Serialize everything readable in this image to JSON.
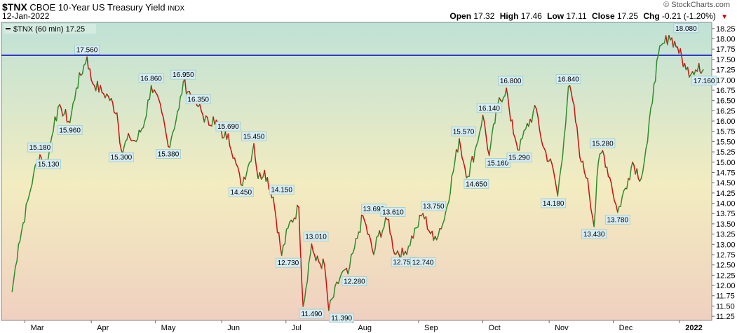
{
  "header": {
    "symbol": "$TNX",
    "name": "CBOE 10-Year US Treasury Yield",
    "exchange": "INDX",
    "watermark": "© StockCharts.com",
    "date": "12-Jan-2022",
    "open_label": "Open",
    "open": "17.32",
    "high_label": "High",
    "high": "17.46",
    "low_label": "Low",
    "low": "17.11",
    "close_label": "Close",
    "close": "17.25",
    "chg_label": "Chg",
    "chg": "-0.21 (-1.20%)"
  },
  "colors": {
    "up": "#2e8b2e",
    "down": "#cc1111",
    "hline": "#0000cc",
    "bg_top": "#bfe2d6",
    "bg_mid": "#f3ecc0",
    "bg_bottom": "#efd0c0"
  },
  "chart_data": {
    "type": "line",
    "title": "",
    "legend": "$TNX (60 min) 17.25",
    "legend_placement": "top-left",
    "x_labels": [
      "Mar",
      "Apr",
      "May",
      "Jun",
      "Jul",
      "Aug",
      "Sep",
      "Oct",
      "Nov",
      "Dec",
      "2022"
    ],
    "ylim": [
      11.15,
      18.4
    ],
    "y_ticks": [
      "11.25",
      "11.50",
      "11.75",
      "12.00",
      "12.25",
      "12.50",
      "12.75",
      "13.00",
      "13.25",
      "13.50",
      "13.75",
      "14.00",
      "14.25",
      "14.50",
      "14.75",
      "15.00",
      "15.25",
      "15.50",
      "15.75",
      "16.00",
      "16.25",
      "16.50",
      "16.75",
      "17.00",
      "17.25",
      "17.50",
      "17.75",
      "18.00",
      "18.25"
    ],
    "horizontal_line": 17.6,
    "grid": false,
    "series": [
      {
        "x": [
          "2021-02-23",
          "2021-02-26",
          "2021-03-03",
          "2021-03-05",
          "2021-03-08",
          "2021-03-10",
          "2021-03-12",
          "2021-03-15",
          "2021-03-18",
          "2021-03-22",
          "2021-03-25",
          "2021-03-30",
          "2021-04-01",
          "2021-04-06",
          "2021-04-09",
          "2021-04-13",
          "2021-04-15",
          "2021-04-19",
          "2021-04-22",
          "2021-04-26",
          "2021-04-29",
          "2021-05-04",
          "2021-05-07",
          "2021-05-12",
          "2021-05-14",
          "2021-05-19",
          "2021-05-21",
          "2021-05-26",
          "2021-05-28",
          "2021-06-02",
          "2021-06-04",
          "2021-06-07",
          "2021-06-10",
          "2021-06-14",
          "2021-06-16",
          "2021-06-18",
          "2021-06-21",
          "2021-06-25",
          "2021-06-29",
          "2021-07-02",
          "2021-07-07",
          "2021-07-09",
          "2021-07-13",
          "2021-07-15",
          "2021-07-19",
          "2021-07-21",
          "2021-07-27",
          "2021-07-30",
          "2021-08-02",
          "2021-08-04",
          "2021-08-06",
          "2021-08-11",
          "2021-08-13",
          "2021-08-18",
          "2021-08-20",
          "2021-08-25",
          "2021-08-31",
          "2021-09-03",
          "2021-09-08",
          "2021-09-13",
          "2021-09-20",
          "2021-09-22",
          "2021-09-24",
          "2021-09-28",
          "2021-10-01",
          "2021-10-04",
          "2021-10-08",
          "2021-10-12",
          "2021-10-14",
          "2021-10-18",
          "2021-10-21",
          "2021-10-26",
          "2021-10-29",
          "2021-11-03",
          "2021-11-05",
          "2021-11-08",
          "2021-11-10",
          "2021-11-12",
          "2021-11-16",
          "2021-11-19",
          "2021-11-22",
          "2021-11-24",
          "2021-11-26",
          "2021-11-30",
          "2021-12-03",
          "2021-12-08",
          "2021-12-10",
          "2021-12-14",
          "2021-12-17",
          "2021-12-20",
          "2021-12-22",
          "2021-12-27",
          "2021-12-31",
          "2022-01-04",
          "2022-01-07",
          "2022-01-10",
          "2022-01-11",
          "2022-01-12"
        ],
        "y": [
          11.85,
          13.0,
          14.2,
          14.7,
          15.18,
          14.95,
          15.13,
          16.1,
          16.3,
          15.96,
          16.8,
          17.56,
          17.0,
          16.7,
          16.6,
          16.2,
          15.3,
          15.6,
          15.5,
          16.0,
          16.86,
          16.2,
          15.38,
          16.3,
          16.95,
          16.5,
          16.35,
          15.9,
          16.1,
          15.6,
          15.69,
          15.1,
          14.45,
          15.0,
          15.45,
          14.6,
          14.8,
          14.15,
          12.73,
          13.4,
          13.9,
          11.49,
          13.01,
          12.6,
          12.5,
          11.39,
          12.3,
          12.28,
          12.9,
          13.3,
          13.69,
          12.75,
          13.2,
          13.61,
          12.9,
          12.74,
          13.4,
          13.75,
          13.1,
          13.6,
          15.57,
          15.0,
          14.65,
          15.4,
          16.14,
          15.16,
          16.4,
          16.8,
          16.0,
          15.29,
          15.8,
          16.3,
          15.4,
          14.8,
          14.18,
          15.6,
          16.84,
          16.5,
          15.0,
          14.6,
          13.43,
          15.0,
          15.28,
          14.5,
          13.78,
          14.6,
          15.0,
          14.6,
          15.5,
          16.9,
          17.6,
          18.08,
          17.8,
          17.25,
          17.2,
          17.4,
          17.16,
          17.25
        ]
      }
    ],
    "annotations": [
      {
        "label": "15.180",
        "x": "2021-03-08",
        "y": 15.18,
        "pos": "above"
      },
      {
        "label": "15.130",
        "x": "2021-03-12",
        "y": 15.13,
        "pos": "below"
      },
      {
        "label": "15.960",
        "x": "2021-03-22",
        "y": 15.96,
        "pos": "below"
      },
      {
        "label": "17.560",
        "x": "2021-03-30",
        "y": 17.56,
        "pos": "above"
      },
      {
        "label": "15.300",
        "x": "2021-04-15",
        "y": 15.3,
        "pos": "below"
      },
      {
        "label": "16.860",
        "x": "2021-04-29",
        "y": 16.86,
        "pos": "above"
      },
      {
        "label": "15.380",
        "x": "2021-05-07",
        "y": 15.38,
        "pos": "below"
      },
      {
        "label": "16.950",
        "x": "2021-05-14",
        "y": 16.95,
        "pos": "above"
      },
      {
        "label": "16.350",
        "x": "2021-05-21",
        "y": 16.35,
        "pos": "above"
      },
      {
        "label": "15.690",
        "x": "2021-06-04",
        "y": 15.69,
        "pos": "above"
      },
      {
        "label": "14.450",
        "x": "2021-06-10",
        "y": 14.45,
        "pos": "below"
      },
      {
        "label": "15.450",
        "x": "2021-06-16",
        "y": 15.45,
        "pos": "above"
      },
      {
        "label": "14.150",
        "x": "2021-06-29",
        "y": 14.15,
        "pos": "above"
      },
      {
        "label": "12.730",
        "x": "2021-07-02",
        "y": 12.73,
        "pos": "below"
      },
      {
        "label": "11.490",
        "x": "2021-07-13",
        "y": 11.49,
        "pos": "below"
      },
      {
        "label": "13.010",
        "x": "2021-07-15",
        "y": 13.01,
        "pos": "above"
      },
      {
        "label": "11.390",
        "x": "2021-07-27",
        "y": 11.39,
        "pos": "below"
      },
      {
        "label": "12.280",
        "x": "2021-08-02",
        "y": 12.28,
        "pos": "below"
      },
      {
        "label": "13.690",
        "x": "2021-08-11",
        "y": 13.69,
        "pos": "above"
      },
      {
        "label": "13.610",
        "x": "2021-08-20",
        "y": 13.61,
        "pos": "above"
      },
      {
        "label": "12.750",
        "x": "2021-08-25",
        "y": 12.75,
        "pos": "below"
      },
      {
        "label": "12.740",
        "x": "2021-09-03",
        "y": 12.74,
        "pos": "below"
      },
      {
        "label": "13.750",
        "x": "2021-09-08",
        "y": 13.75,
        "pos": "above"
      },
      {
        "label": "15.570",
        "x": "2021-09-22",
        "y": 15.57,
        "pos": "above"
      },
      {
        "label": "14.650",
        "x": "2021-09-28",
        "y": 14.65,
        "pos": "below"
      },
      {
        "label": "16.140",
        "x": "2021-10-04",
        "y": 16.14,
        "pos": "above"
      },
      {
        "label": "15.160",
        "x": "2021-10-08",
        "y": 15.16,
        "pos": "below"
      },
      {
        "label": "16.800",
        "x": "2021-10-14",
        "y": 16.8,
        "pos": "above"
      },
      {
        "label": "15.290",
        "x": "2021-10-18",
        "y": 15.29,
        "pos": "below"
      },
      {
        "label": "14.180",
        "x": "2021-11-03",
        "y": 14.18,
        "pos": "below"
      },
      {
        "label": "16.840",
        "x": "2021-11-10",
        "y": 16.84,
        "pos": "above"
      },
      {
        "label": "13.430",
        "x": "2021-11-22",
        "y": 13.43,
        "pos": "below"
      },
      {
        "label": "15.280",
        "x": "2021-11-26",
        "y": 15.28,
        "pos": "above"
      },
      {
        "label": "13.780",
        "x": "2021-12-03",
        "y": 13.78,
        "pos": "below"
      },
      {
        "label": "18.080",
        "x": "2022-01-04",
        "y": 18.08,
        "pos": "above"
      },
      {
        "label": "17.160",
        "x": "2022-01-10",
        "y": 17.16,
        "pos": "right"
      }
    ]
  }
}
